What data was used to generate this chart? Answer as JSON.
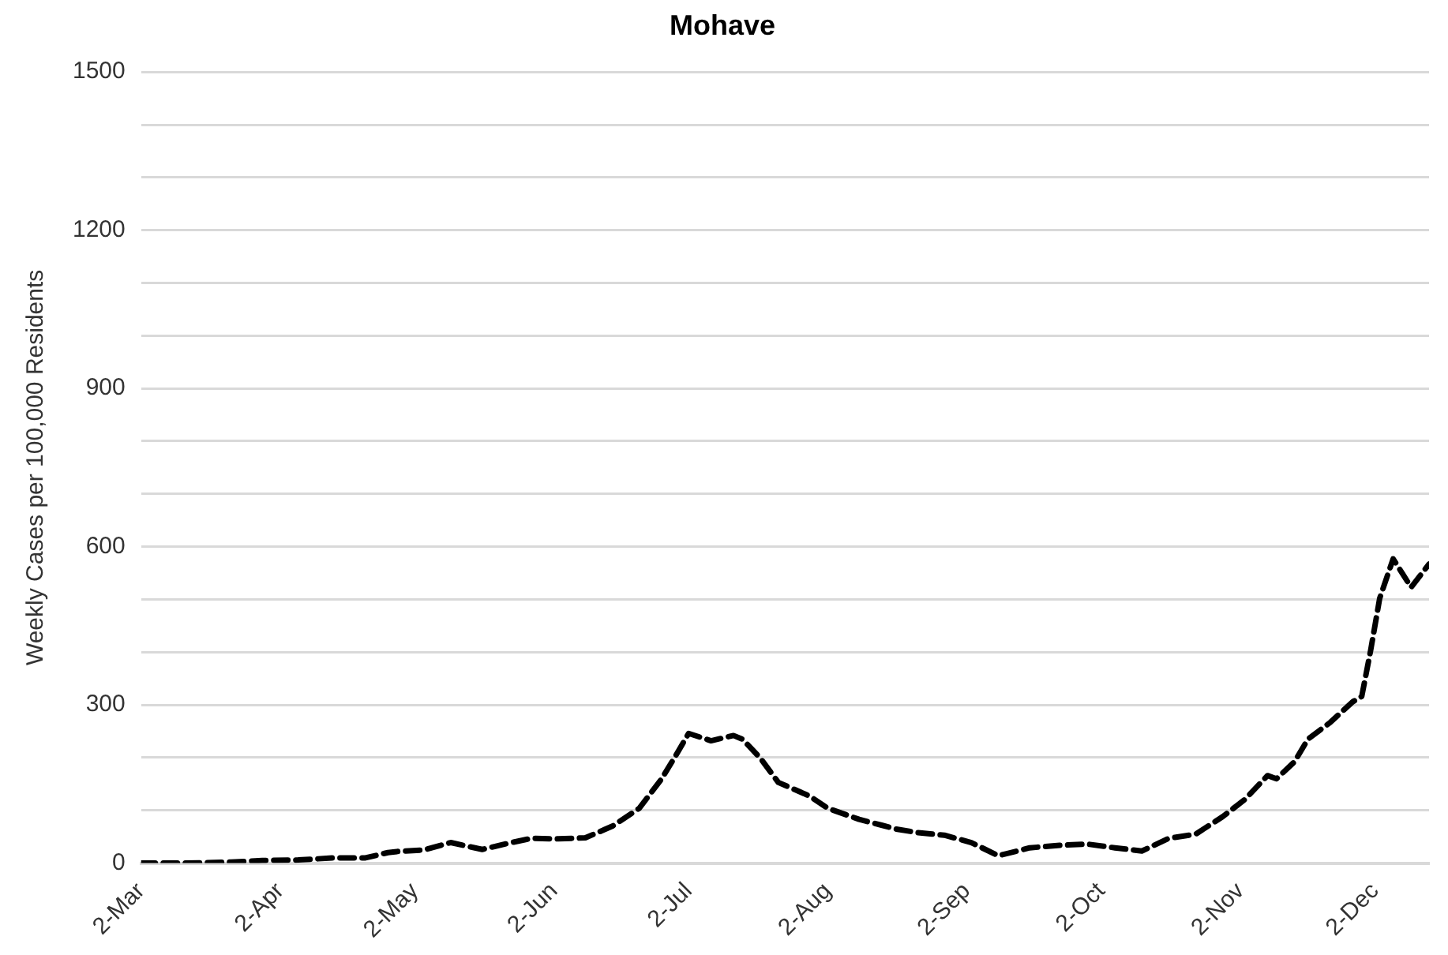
{
  "chart_data": {
    "type": "line",
    "title": "Mohave",
    "ylabel": "Weekly Cases per 100,000 Residents",
    "x": [
      "--03-02",
      "--03-12",
      "--03-22",
      "--03-29",
      "--04-06",
      "--04-14",
      "--04-21",
      "--04-26",
      "--04-28",
      "--05-04",
      "--05-10",
      "--05-17",
      "--05-23",
      "--05-28",
      "--06-03",
      "--06-09",
      "--06-15",
      "--06-21",
      "--06-26",
      "--06-29",
      "--07-02",
      "--07-07",
      "--07-12",
      "--07-14",
      "--07-18",
      "--07-22",
      "--07-29",
      "--08-02",
      "--08-09",
      "--08-14",
      "--08-17",
      "--08-22",
      "--08-28",
      "--09-03",
      "--09-09",
      "--09-16",
      "--09-23",
      "--09-29",
      "--10-05",
      "--10-11",
      "--10-17",
      "--10-23",
      "--10-29",
      "--11-03",
      "--11-08",
      "--11-10",
      "--11-14",
      "--11-17",
      "--11-22",
      "--11-27",
      "--11-29",
      "--12-01",
      "--12-03",
      "--12-06",
      "--12-10",
      "--12-14"
    ],
    "series": [
      {
        "color": "#000000",
        "values": [
          0,
          0,
          2,
          5,
          6,
          10,
          10,
          20,
          22,
          25,
          39,
          26,
          38,
          47,
          46,
          48,
          70,
          104,
          160,
          202,
          246,
          232,
          242,
          235,
          199,
          153,
          127,
          104,
          83,
          72,
          65,
          58,
          53,
          39,
          14,
          29,
          34,
          36,
          29,
          23,
          47,
          55,
          88,
          121,
          166,
          160,
          192,
          235,
          267,
          306,
          316,
          404,
          502,
          577,
          523,
          567
        ]
      }
    ],
    "xlim": [
      "--03-02",
      "--12-14"
    ],
    "xticks": [
      {
        "value": "--03-02",
        "label": "2-Mar"
      },
      {
        "value": "--04-02",
        "label": "2-Apr"
      },
      {
        "value": "--05-02",
        "label": "2-May"
      },
      {
        "value": "--06-02",
        "label": "2-Jun"
      },
      {
        "value": "--07-02",
        "label": "2-Jul"
      },
      {
        "value": "--08-02",
        "label": "2-Aug"
      },
      {
        "value": "--09-02",
        "label": "2-Sep"
      },
      {
        "value": "--10-02",
        "label": "2-Oct"
      },
      {
        "value": "--11-02",
        "label": "2-Nov"
      },
      {
        "value": "--12-02",
        "label": "2-Dec"
      }
    ],
    "ylim": [
      0,
      1500
    ],
    "yticks": [
      0,
      {
        "value": 100,
        "label": null
      },
      {
        "value": 200,
        "label": null
      },
      300,
      {
        "value": 400,
        "label": null
      },
      {
        "value": 500,
        "label": null
      },
      600,
      {
        "value": 700,
        "label": null
      },
      {
        "value": 800,
        "label": null
      },
      900,
      {
        "value": 1000,
        "label": null
      },
      {
        "value": 1100,
        "label": null
      },
      1200,
      {
        "value": 1300,
        "label": null
      },
      {
        "value": 1400,
        "label": null
      },
      1500
    ],
    "grid": "y",
    "legend": false,
    "marker": "none",
    "line_style": "dashed"
  }
}
